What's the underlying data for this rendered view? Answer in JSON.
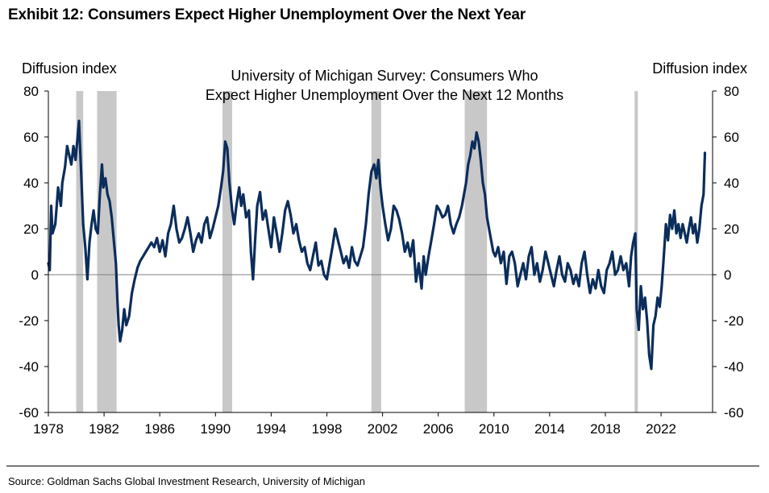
{
  "header": {
    "exhibit_title": "Exhibit 12: Consumers Expect Higher Unemployment Over the Next Year"
  },
  "footer": {
    "source": "Source: Goldman Sachs Global Investment Research, University of Michigan"
  },
  "chart_data": {
    "type": "line",
    "title_lines": [
      "University of Michigan Survey: Consumers Who",
      "Expect Higher Unemployment Over the Next 12 Months"
    ],
    "ylabel_left": "Diffusion index",
    "ylabel_right": "Diffusion index",
    "ylim": [
      -60,
      80
    ],
    "yticks": [
      80,
      60,
      40,
      20,
      0,
      -20,
      -40,
      -60
    ],
    "xlim": [
      1978,
      2025.7
    ],
    "xticks": [
      1978,
      1982,
      1986,
      1990,
      1994,
      1998,
      2002,
      2006,
      2010,
      2014,
      2018,
      2022
    ],
    "grid": false,
    "zero_line": true,
    "colors": {
      "line": "#0b2d5b",
      "recession": "#c8c8c8",
      "zero": "#808080"
    },
    "recessions": [
      [
        1980.0,
        1980.5
      ],
      [
        1981.5,
        1982.9
      ],
      [
        1990.5,
        1991.2
      ],
      [
        2001.2,
        2001.9
      ],
      [
        2007.9,
        2009.5
      ],
      [
        2020.1,
        2020.3
      ]
    ],
    "series": [
      {
        "points": [
          [
            1978.0,
            5
          ],
          [
            1978.1,
            2
          ],
          [
            1978.2,
            30
          ],
          [
            1978.3,
            18
          ],
          [
            1978.5,
            22
          ],
          [
            1978.7,
            38
          ],
          [
            1978.9,
            30
          ],
          [
            1979.0,
            40
          ],
          [
            1979.2,
            47
          ],
          [
            1979.35,
            56
          ],
          [
            1979.5,
            52
          ],
          [
            1979.65,
            48
          ],
          [
            1979.8,
            56
          ],
          [
            1979.95,
            50
          ],
          [
            1980.1,
            60
          ],
          [
            1980.2,
            67
          ],
          [
            1980.35,
            45
          ],
          [
            1980.5,
            22
          ],
          [
            1980.65,
            12
          ],
          [
            1980.8,
            -2
          ],
          [
            1980.95,
            14
          ],
          [
            1981.1,
            22
          ],
          [
            1981.25,
            28
          ],
          [
            1981.4,
            20
          ],
          [
            1981.55,
            18
          ],
          [
            1981.7,
            35
          ],
          [
            1981.85,
            48
          ],
          [
            1981.95,
            38
          ],
          [
            1982.1,
            42
          ],
          [
            1982.25,
            35
          ],
          [
            1982.4,
            32
          ],
          [
            1982.55,
            25
          ],
          [
            1982.7,
            15
          ],
          [
            1982.85,
            5
          ],
          [
            1982.95,
            -10
          ],
          [
            1983.05,
            -22
          ],
          [
            1983.15,
            -29
          ],
          [
            1983.3,
            -24
          ],
          [
            1983.45,
            -15
          ],
          [
            1983.6,
            -22
          ],
          [
            1983.8,
            -18
          ],
          [
            1984.0,
            -8
          ],
          [
            1984.2,
            -2
          ],
          [
            1984.4,
            3
          ],
          [
            1984.6,
            6
          ],
          [
            1984.8,
            8
          ],
          [
            1985.0,
            10
          ],
          [
            1985.2,
            12
          ],
          [
            1985.4,
            14
          ],
          [
            1985.6,
            12
          ],
          [
            1985.8,
            16
          ],
          [
            1986.0,
            10
          ],
          [
            1986.2,
            15
          ],
          [
            1986.4,
            8
          ],
          [
            1986.6,
            18
          ],
          [
            1986.8,
            22
          ],
          [
            1987.0,
            30
          ],
          [
            1987.2,
            20
          ],
          [
            1987.4,
            14
          ],
          [
            1987.6,
            16
          ],
          [
            1987.8,
            20
          ],
          [
            1988.0,
            25
          ],
          [
            1988.2,
            18
          ],
          [
            1988.4,
            10
          ],
          [
            1988.6,
            15
          ],
          [
            1988.8,
            18
          ],
          [
            1989.0,
            14
          ],
          [
            1989.2,
            22
          ],
          [
            1989.4,
            25
          ],
          [
            1989.6,
            16
          ],
          [
            1989.8,
            20
          ],
          [
            1990.0,
            25
          ],
          [
            1990.2,
            30
          ],
          [
            1990.4,
            38
          ],
          [
            1990.55,
            45
          ],
          [
            1990.7,
            58
          ],
          [
            1990.85,
            55
          ],
          [
            1991.0,
            40
          ],
          [
            1991.2,
            28
          ],
          [
            1991.35,
            22
          ],
          [
            1991.5,
            30
          ],
          [
            1991.7,
            38
          ],
          [
            1991.85,
            30
          ],
          [
            1992.0,
            35
          ],
          [
            1992.2,
            25
          ],
          [
            1992.4,
            28
          ],
          [
            1992.55,
            10
          ],
          [
            1992.7,
            -2
          ],
          [
            1992.85,
            15
          ],
          [
            1993.0,
            30
          ],
          [
            1993.2,
            36
          ],
          [
            1993.4,
            24
          ],
          [
            1993.6,
            28
          ],
          [
            1993.8,
            20
          ],
          [
            1994.0,
            12
          ],
          [
            1994.2,
            25
          ],
          [
            1994.4,
            18
          ],
          [
            1994.6,
            10
          ],
          [
            1994.8,
            18
          ],
          [
            1995.0,
            28
          ],
          [
            1995.2,
            32
          ],
          [
            1995.4,
            26
          ],
          [
            1995.6,
            18
          ],
          [
            1995.8,
            22
          ],
          [
            1996.0,
            15
          ],
          [
            1996.2,
            10
          ],
          [
            1996.4,
            12
          ],
          [
            1996.6,
            5
          ],
          [
            1996.8,
            2
          ],
          [
            1997.0,
            8
          ],
          [
            1997.2,
            14
          ],
          [
            1997.4,
            4
          ],
          [
            1997.6,
            6
          ],
          [
            1997.8,
            0
          ],
          [
            1998.0,
            -2
          ],
          [
            1998.2,
            5
          ],
          [
            1998.4,
            12
          ],
          [
            1998.6,
            20
          ],
          [
            1998.8,
            15
          ],
          [
            1999.0,
            10
          ],
          [
            1999.2,
            5
          ],
          [
            1999.4,
            8
          ],
          [
            1999.6,
            3
          ],
          [
            1999.8,
            12
          ],
          [
            2000.0,
            6
          ],
          [
            2000.2,
            4
          ],
          [
            2000.4,
            8
          ],
          [
            2000.6,
            12
          ],
          [
            2000.8,
            22
          ],
          [
            2001.0,
            35
          ],
          [
            2001.2,
            45
          ],
          [
            2001.4,
            48
          ],
          [
            2001.55,
            42
          ],
          [
            2001.7,
            50
          ],
          [
            2001.85,
            38
          ],
          [
            2002.0,
            30
          ],
          [
            2002.2,
            22
          ],
          [
            2002.4,
            15
          ],
          [
            2002.6,
            20
          ],
          [
            2002.8,
            30
          ],
          [
            2003.0,
            28
          ],
          [
            2003.2,
            24
          ],
          [
            2003.4,
            18
          ],
          [
            2003.6,
            10
          ],
          [
            2003.8,
            14
          ],
          [
            2004.0,
            8
          ],
          [
            2004.2,
            15
          ],
          [
            2004.4,
            -3
          ],
          [
            2004.6,
            5
          ],
          [
            2004.8,
            -6
          ],
          [
            2004.95,
            8
          ],
          [
            2005.1,
            0
          ],
          [
            2005.3,
            8
          ],
          [
            2005.5,
            15
          ],
          [
            2005.7,
            22
          ],
          [
            2005.9,
            30
          ],
          [
            2006.1,
            28
          ],
          [
            2006.3,
            25
          ],
          [
            2006.5,
            26
          ],
          [
            2006.7,
            30
          ],
          [
            2006.9,
            22
          ],
          [
            2007.1,
            18
          ],
          [
            2007.3,
            22
          ],
          [
            2007.5,
            25
          ],
          [
            2007.7,
            30
          ],
          [
            2007.85,
            35
          ],
          [
            2008.0,
            40
          ],
          [
            2008.15,
            48
          ],
          [
            2008.3,
            52
          ],
          [
            2008.45,
            58
          ],
          [
            2008.6,
            55
          ],
          [
            2008.75,
            62
          ],
          [
            2008.9,
            58
          ],
          [
            2009.05,
            50
          ],
          [
            2009.2,
            40
          ],
          [
            2009.35,
            35
          ],
          [
            2009.5,
            25
          ],
          [
            2009.65,
            20
          ],
          [
            2009.8,
            15
          ],
          [
            2009.95,
            10
          ],
          [
            2010.1,
            8
          ],
          [
            2010.3,
            12
          ],
          [
            2010.5,
            5
          ],
          [
            2010.7,
            10
          ],
          [
            2010.9,
            -4
          ],
          [
            2011.1,
            8
          ],
          [
            2011.3,
            10
          ],
          [
            2011.5,
            5
          ],
          [
            2011.7,
            -5
          ],
          [
            2011.9,
            0
          ],
          [
            2012.1,
            5
          ],
          [
            2012.3,
            -2
          ],
          [
            2012.5,
            8
          ],
          [
            2012.7,
            12
          ],
          [
            2012.9,
            0
          ],
          [
            2013.1,
            5
          ],
          [
            2013.3,
            -3
          ],
          [
            2013.5,
            2
          ],
          [
            2013.7,
            10
          ],
          [
            2013.9,
            5
          ],
          [
            2014.1,
            0
          ],
          [
            2014.3,
            -5
          ],
          [
            2014.5,
            2
          ],
          [
            2014.7,
            8
          ],
          [
            2014.9,
            0
          ],
          [
            2015.1,
            -3
          ],
          [
            2015.3,
            5
          ],
          [
            2015.5,
            2
          ],
          [
            2015.7,
            -4
          ],
          [
            2015.9,
            0
          ],
          [
            2016.1,
            -5
          ],
          [
            2016.3,
            5
          ],
          [
            2016.5,
            10
          ],
          [
            2016.7,
            0
          ],
          [
            2016.9,
            -8
          ],
          [
            2017.1,
            -2
          ],
          [
            2017.3,
            -6
          ],
          [
            2017.5,
            2
          ],
          [
            2017.7,
            -5
          ],
          [
            2017.9,
            -8
          ],
          [
            2018.1,
            2
          ],
          [
            2018.3,
            5
          ],
          [
            2018.5,
            10
          ],
          [
            2018.7,
            0
          ],
          [
            2018.9,
            2
          ],
          [
            2019.1,
            8
          ],
          [
            2019.3,
            2
          ],
          [
            2019.5,
            5
          ],
          [
            2019.7,
            -5
          ],
          [
            2019.85,
            8
          ],
          [
            2020.0,
            14
          ],
          [
            2020.15,
            18
          ],
          [
            2020.25,
            -15
          ],
          [
            2020.4,
            -24
          ],
          [
            2020.55,
            -5
          ],
          [
            2020.7,
            -15
          ],
          [
            2020.85,
            -10
          ],
          [
            2021.0,
            -20
          ],
          [
            2021.15,
            -35
          ],
          [
            2021.3,
            -41
          ],
          [
            2021.45,
            -22
          ],
          [
            2021.6,
            -18
          ],
          [
            2021.75,
            -10
          ],
          [
            2021.9,
            -14
          ],
          [
            2022.05,
            -5
          ],
          [
            2022.2,
            8
          ],
          [
            2022.35,
            22
          ],
          [
            2022.5,
            15
          ],
          [
            2022.65,
            26
          ],
          [
            2022.8,
            20
          ],
          [
            2022.95,
            28
          ],
          [
            2023.1,
            18
          ],
          [
            2023.25,
            22
          ],
          [
            2023.4,
            16
          ],
          [
            2023.55,
            22
          ],
          [
            2023.7,
            18
          ],
          [
            2023.85,
            14
          ],
          [
            2024.0,
            20
          ],
          [
            2024.15,
            25
          ],
          [
            2024.3,
            18
          ],
          [
            2024.45,
            22
          ],
          [
            2024.6,
            14
          ],
          [
            2024.75,
            20
          ],
          [
            2024.9,
            30
          ],
          [
            2025.05,
            35
          ],
          [
            2025.15,
            53
          ]
        ]
      }
    ]
  }
}
